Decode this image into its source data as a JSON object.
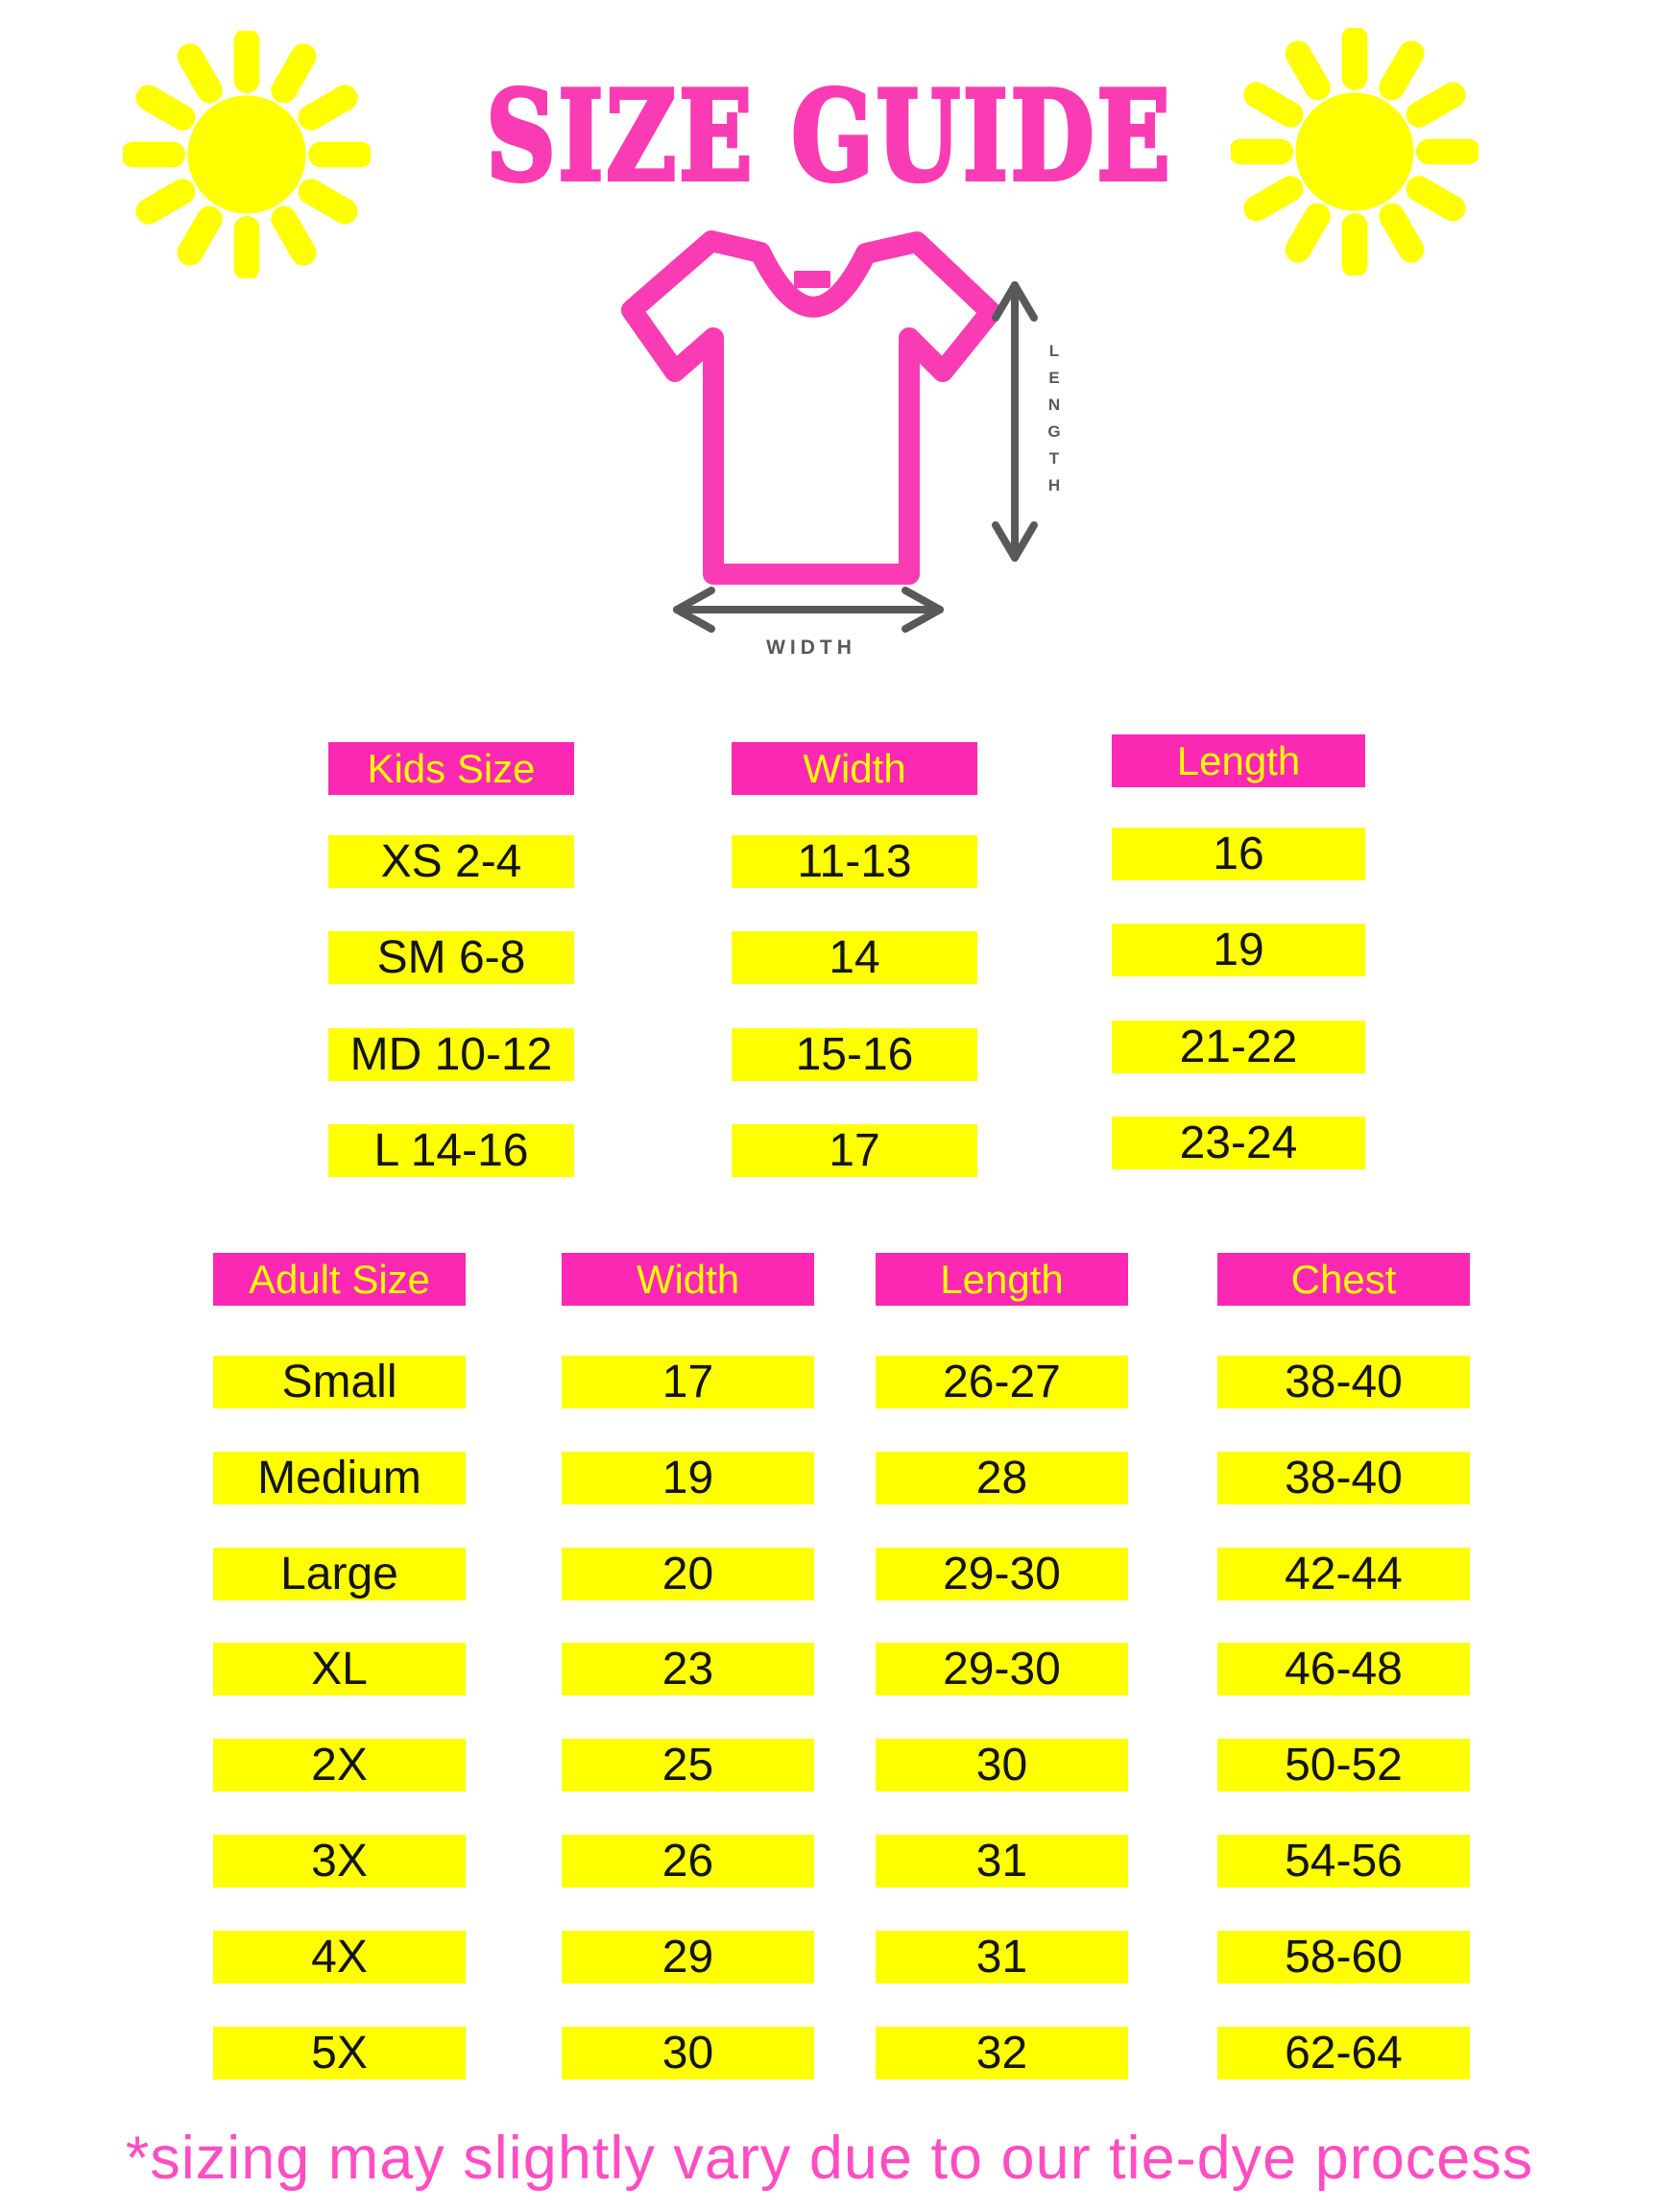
{
  "title": "SIZE GUIDE",
  "diagram": {
    "length_label": "LENGTH",
    "width_label": "WIDTH"
  },
  "kids_table": {
    "headers": [
      "Kids Size",
      "Width",
      "Length"
    ],
    "rows": [
      [
        "XS 2-4",
        "11-13",
        "16"
      ],
      [
        "SM 6-8",
        "14",
        "19"
      ],
      [
        "MD 10-12",
        "15-16",
        "21-22"
      ],
      [
        "L 14-16",
        "17",
        "23-24"
      ]
    ]
  },
  "adult_table": {
    "headers": [
      "Adult Size",
      "Width",
      "Length",
      "Chest"
    ],
    "rows": [
      [
        "Small",
        "17",
        "26-27",
        "38-40"
      ],
      [
        "Medium",
        "19",
        "28",
        "38-40"
      ],
      [
        "Large",
        "20",
        "29-30",
        "42-44"
      ],
      [
        "XL",
        "23",
        "29-30",
        "46-48"
      ],
      [
        "2X",
        "25",
        "30",
        "50-52"
      ],
      [
        "3X",
        "26",
        "31",
        "54-56"
      ],
      [
        "4X",
        "29",
        "31",
        "58-60"
      ],
      [
        "5X",
        "30",
        "32",
        "62-64"
      ]
    ]
  },
  "footnote": "*sizing may slightly vary due to our tie-dye process",
  "icons": {
    "sun_left": "sun-icon",
    "sun_right": "sun-icon",
    "tshirt": "tshirt-icon",
    "length_arrow": "arrow-vertical-icon",
    "width_arrow": "arrow-horizontal-icon"
  },
  "colors": {
    "magenta": "#F93CB4",
    "header_magenta": "#FA28B2",
    "yellow": "#FFFF00",
    "cell_text": "#141414",
    "arrow_gray": "#58595B",
    "footnote_pink": "#FF4DC2"
  }
}
